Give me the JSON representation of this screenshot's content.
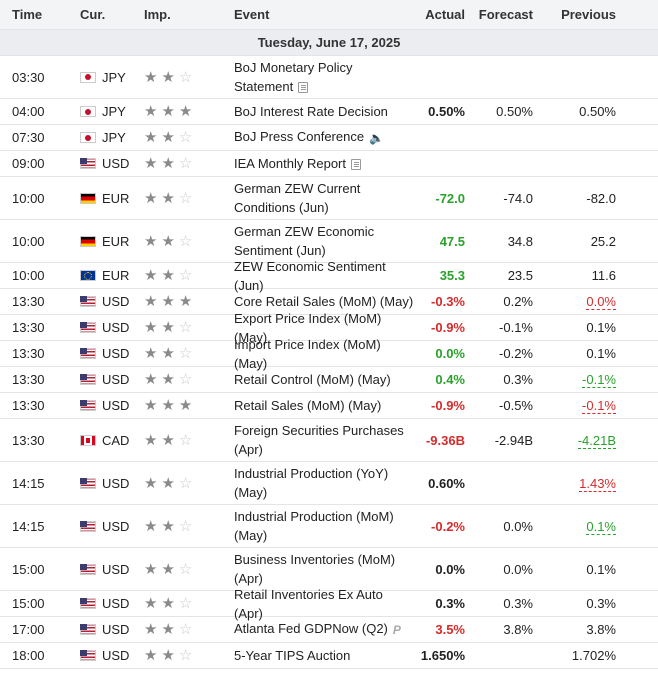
{
  "headers": {
    "time": "Time",
    "cur": "Cur.",
    "imp": "Imp.",
    "event": "Event",
    "actual": "Actual",
    "forecast": "Forecast",
    "previous": "Previous"
  },
  "date_label": "Tuesday, June 17, 2025",
  "rows": [
    {
      "time": "03:30",
      "flag": "jp",
      "cur": "JPY",
      "imp": 2,
      "event": "BoJ Monetary Policy Statement",
      "icon": "document-icon",
      "actual": "",
      "actual_tone": "",
      "forecast": "",
      "previous": "",
      "prev_tone": ""
    },
    {
      "time": "04:00",
      "flag": "jp",
      "cur": "JPY",
      "imp": 3,
      "event": "BoJ Interest Rate Decision",
      "icon": "",
      "actual": "0.50%",
      "actual_tone": "",
      "forecast": "0.50%",
      "previous": "0.50%",
      "prev_tone": ""
    },
    {
      "time": "07:30",
      "flag": "jp",
      "cur": "JPY",
      "imp": 2,
      "event": "BoJ Press Conference",
      "icon": "speaker-icon",
      "actual": "",
      "actual_tone": "",
      "forecast": "",
      "previous": "",
      "prev_tone": ""
    },
    {
      "time": "09:00",
      "flag": "us",
      "cur": "USD",
      "imp": 2,
      "event": "IEA Monthly Report",
      "icon": "document-icon",
      "actual": "",
      "actual_tone": "",
      "forecast": "",
      "previous": "",
      "prev_tone": ""
    },
    {
      "time": "10:00",
      "flag": "de",
      "cur": "EUR",
      "imp": 2,
      "event": "German ZEW Current Conditions (Jun)",
      "icon": "",
      "actual": "-72.0",
      "actual_tone": "pos",
      "forecast": "-74.0",
      "previous": "-82.0",
      "prev_tone": ""
    },
    {
      "time": "10:00",
      "flag": "de",
      "cur": "EUR",
      "imp": 2,
      "event": "German ZEW Economic Sentiment (Jun)",
      "icon": "",
      "actual": "47.5",
      "actual_tone": "pos",
      "forecast": "34.8",
      "previous": "25.2",
      "prev_tone": ""
    },
    {
      "time": "10:00",
      "flag": "eu",
      "cur": "EUR",
      "imp": 2,
      "event": "ZEW Economic Sentiment (Jun)",
      "icon": "",
      "actual": "35.3",
      "actual_tone": "pos",
      "forecast": "23.5",
      "previous": "11.6",
      "prev_tone": ""
    },
    {
      "time": "13:30",
      "flag": "us",
      "cur": "USD",
      "imp": 3,
      "event": "Core Retail Sales (MoM) (May)",
      "icon": "",
      "actual": "-0.3%",
      "actual_tone": "neg",
      "forecast": "0.2%",
      "previous": "0.0%",
      "prev_tone": "under-neg"
    },
    {
      "time": "13:30",
      "flag": "us",
      "cur": "USD",
      "imp": 2,
      "event": "Export Price Index (MoM) (May)",
      "icon": "",
      "actual": "-0.9%",
      "actual_tone": "neg",
      "forecast": "-0.1%",
      "previous": "0.1%",
      "prev_tone": ""
    },
    {
      "time": "13:30",
      "flag": "us",
      "cur": "USD",
      "imp": 2,
      "event": "Import Price Index (MoM) (May)",
      "icon": "",
      "actual": "0.0%",
      "actual_tone": "pos",
      "forecast": "-0.2%",
      "previous": "0.1%",
      "prev_tone": ""
    },
    {
      "time": "13:30",
      "flag": "us",
      "cur": "USD",
      "imp": 2,
      "event": "Retail Control (MoM) (May)",
      "icon": "",
      "actual": "0.4%",
      "actual_tone": "pos",
      "forecast": "0.3%",
      "previous": "-0.1%",
      "prev_tone": "under-pos"
    },
    {
      "time": "13:30",
      "flag": "us",
      "cur": "USD",
      "imp": 3,
      "event": "Retail Sales (MoM) (May)",
      "icon": "",
      "actual": "-0.9%",
      "actual_tone": "neg",
      "forecast": "-0.5%",
      "previous": "-0.1%",
      "prev_tone": "under-neg"
    },
    {
      "time": "13:30",
      "flag": "ca",
      "cur": "CAD",
      "imp": 2,
      "event": "Foreign Securities Purchases (Apr)",
      "icon": "",
      "actual": "-9.36B",
      "actual_tone": "neg",
      "forecast": "-2.94B",
      "previous": "-4.21B",
      "prev_tone": "under-pos"
    },
    {
      "time": "14:15",
      "flag": "us",
      "cur": "USD",
      "imp": 2,
      "event": "Industrial Production (YoY) (May)",
      "icon": "",
      "actual": "0.60%",
      "actual_tone": "",
      "forecast": "",
      "previous": "1.43%",
      "prev_tone": "under-neg"
    },
    {
      "time": "14:15",
      "flag": "us",
      "cur": "USD",
      "imp": 2,
      "event": "Industrial Production (MoM) (May)",
      "icon": "",
      "actual": "-0.2%",
      "actual_tone": "neg",
      "forecast": "0.0%",
      "previous": "0.1%",
      "prev_tone": "under-pos"
    },
    {
      "time": "15:00",
      "flag": "us",
      "cur": "USD",
      "imp": 2,
      "event": "Business Inventories (MoM) (Apr)",
      "icon": "",
      "actual": "0.0%",
      "actual_tone": "",
      "forecast": "0.0%",
      "previous": "0.1%",
      "prev_tone": ""
    },
    {
      "time": "15:00",
      "flag": "us",
      "cur": "USD",
      "imp": 2,
      "event": "Retail Inventories Ex Auto (Apr)",
      "icon": "",
      "actual": "0.3%",
      "actual_tone": "",
      "forecast": "0.3%",
      "previous": "0.3%",
      "prev_tone": ""
    },
    {
      "time": "17:00",
      "flag": "us",
      "cur": "USD",
      "imp": 2,
      "event": "Atlanta Fed GDPNow (Q2)",
      "icon": "preliminary-icon",
      "icon_text": "P",
      "actual": "3.5%",
      "actual_tone": "neg",
      "forecast": "3.8%",
      "previous": "3.8%",
      "prev_tone": ""
    },
    {
      "time": "18:00",
      "flag": "us",
      "cur": "USD",
      "imp": 2,
      "event": "5-Year TIPS Auction",
      "icon": "",
      "actual": "1.650%",
      "actual_tone": "",
      "forecast": "",
      "previous": "1.702%",
      "prev_tone": ""
    }
  ],
  "row_heights": [
    43,
    26,
    26,
    26,
    43,
    43,
    26,
    26,
    26,
    26,
    26,
    26,
    43,
    43,
    43,
    43,
    26,
    26,
    26
  ]
}
